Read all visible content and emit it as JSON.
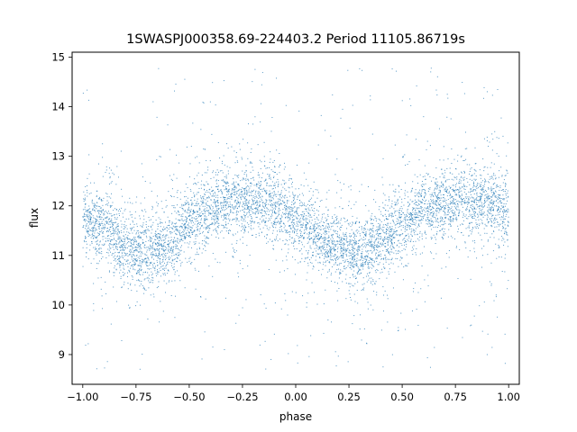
{
  "chart_data": {
    "type": "scatter",
    "title": "1SWASPJ000358.69-224403.2 Period 11105.86719s",
    "xlabel": "phase",
    "ylabel": "flux",
    "xlim": [
      -1.05,
      1.05
    ],
    "ylim": [
      8.4,
      15.1
    ],
    "xticks": [
      -1.0,
      -0.75,
      -0.5,
      -0.25,
      0.0,
      0.25,
      0.5,
      0.75,
      1.0
    ],
    "xtick_labels": [
      "−1.00",
      "−0.75",
      "−0.50",
      "−0.25",
      "0.00",
      "0.25",
      "0.50",
      "0.75",
      "1.00"
    ],
    "yticks": [
      9,
      10,
      11,
      12,
      13,
      14,
      15
    ],
    "ytick_labels": [
      "9",
      "10",
      "11",
      "12",
      "13",
      "14",
      "15"
    ],
    "grid": false,
    "legend": "none",
    "marker_color": "#1f77b4",
    "series": [
      {
        "description_of_trend": "folded light curve: sinusoidal variation, maxima near phase -0.2 and 0.8, minima near phase -0.7 and 0.3",
        "sample_points": [
          {
            "x": -1.0,
            "y": 11.7
          },
          {
            "x": -0.9,
            "y": 11.6
          },
          {
            "x": -0.8,
            "y": 11.2
          },
          {
            "x": -0.7,
            "y": 11.05
          },
          {
            "x": -0.6,
            "y": 11.2
          },
          {
            "x": -0.5,
            "y": 11.6
          },
          {
            "x": -0.4,
            "y": 11.95
          },
          {
            "x": -0.3,
            "y": 12.1
          },
          {
            "x": -0.2,
            "y": 12.1
          },
          {
            "x": -0.1,
            "y": 12.0
          },
          {
            "x": 0.0,
            "y": 11.75
          },
          {
            "x": 0.1,
            "y": 11.4
          },
          {
            "x": 0.2,
            "y": 11.15
          },
          {
            "x": 0.3,
            "y": 11.05
          },
          {
            "x": 0.4,
            "y": 11.3
          },
          {
            "x": 0.5,
            "y": 11.6
          },
          {
            "x": 0.6,
            "y": 11.95
          },
          {
            "x": 0.7,
            "y": 12.05
          },
          {
            "x": 0.8,
            "y": 12.15
          },
          {
            "x": 0.9,
            "y": 12.1
          },
          {
            "x": 1.0,
            "y": 11.85
          }
        ]
      }
    ]
  }
}
